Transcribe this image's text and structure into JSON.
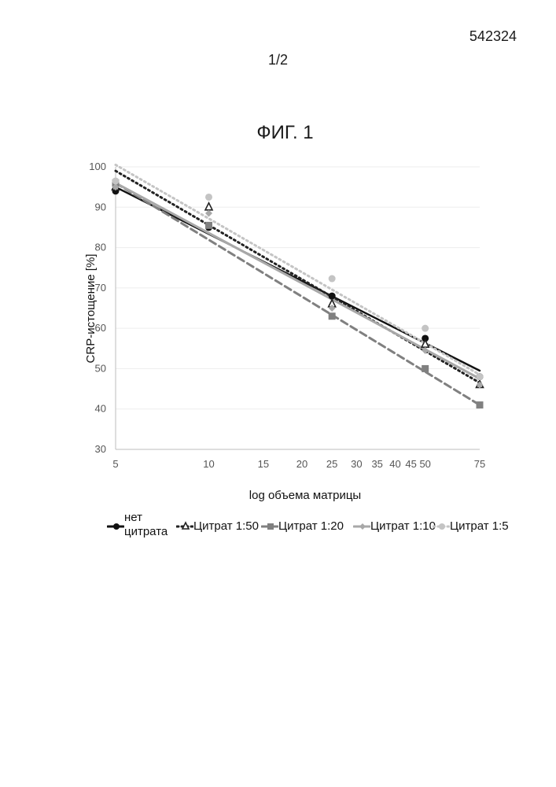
{
  "header": {
    "doc_number": "542324",
    "page_number": "1/2"
  },
  "figure": {
    "title": "ФИГ. 1"
  },
  "chart_data": {
    "type": "scatter",
    "title": "ФИГ. 1",
    "xlabel": "log объема матрицы",
    "ylabel": "CRP-истощение [%]",
    "x_scale": "log",
    "xlim": [
      5,
      75
    ],
    "ylim": [
      30,
      100
    ],
    "x_ticks": [
      5,
      10,
      15,
      20,
      25,
      30,
      35,
      40,
      45,
      50,
      75
    ],
    "x_tick_labels": [
      "5",
      "10",
      "15",
      "20",
      "25",
      "30",
      "35",
      "40",
      "45",
      "50",
      "75"
    ],
    "y_ticks": [
      30,
      40,
      50,
      60,
      70,
      80,
      90,
      100
    ],
    "grid": "horizontal",
    "legend_position": "bottom",
    "series": [
      {
        "name": "нет цитрата",
        "color": "#111111",
        "marker": "circle",
        "line_style": "solid",
        "x": [
          5,
          10,
          25,
          50,
          75
        ],
        "y": [
          94,
          85,
          68,
          57.5,
          48
        ],
        "trend": [
          [
            5,
            95
          ],
          [
            75,
            49.5
          ]
        ]
      },
      {
        "name": "Цитрат 1:50",
        "color": "#222222",
        "marker": "triangle",
        "line_style": "dotted",
        "x": [
          5,
          10,
          25,
          50,
          75
        ],
        "y": [
          95,
          90,
          66,
          56,
          46
        ],
        "trend": [
          [
            5,
            99
          ],
          [
            75,
            46.5
          ]
        ]
      },
      {
        "name": "Цитрат 1:20",
        "color": "#808080",
        "marker": "square",
        "line_style": "dashed",
        "x": [
          5,
          10,
          25,
          50,
          75
        ],
        "y": [
          96,
          85.5,
          63,
          50,
          41
        ],
        "trend": [
          [
            5,
            96
          ],
          [
            75,
            41
          ]
        ]
      },
      {
        "name": "Цитрат 1:10",
        "color": "#a8a8a8",
        "marker": "diamond",
        "line_style": "solid",
        "x": [
          5,
          10,
          25,
          50,
          75
        ],
        "y": [
          95,
          88.5,
          65,
          54.5,
          46
        ],
        "trend": [
          [
            5,
            96
          ],
          [
            75,
            47.5
          ]
        ]
      },
      {
        "name": "Цитрат 1:5",
        "color": "#c4c4c4",
        "marker": "circle",
        "line_style": "dotted",
        "x": [
          5,
          10,
          25,
          50,
          75
        ],
        "y": [
          96.5,
          92.5,
          72.3,
          60,
          48
        ],
        "trend": [
          [
            5,
            100.5
          ],
          [
            75,
            48.5
          ]
        ]
      }
    ]
  }
}
